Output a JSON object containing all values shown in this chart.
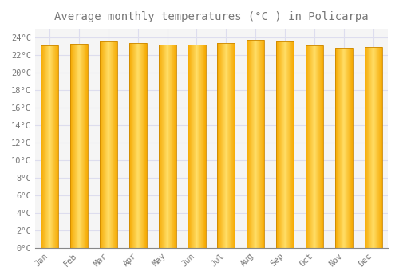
{
  "title": "Average monthly temperatures (°C ) in Policarpa",
  "months": [
    "Jan",
    "Feb",
    "Mar",
    "Apr",
    "May",
    "Jun",
    "Jul",
    "Aug",
    "Sep",
    "Oct",
    "Nov",
    "Dec"
  ],
  "temperatures": [
    23.1,
    23.3,
    23.5,
    23.4,
    23.2,
    23.2,
    23.4,
    23.7,
    23.5,
    23.1,
    22.8,
    22.9
  ],
  "bar_color_center": "#FFD966",
  "bar_color_edge": "#F5A800",
  "bar_edge_color": "#CC8800",
  "ylim": [
    0,
    25
  ],
  "yticks": [
    0,
    2,
    4,
    6,
    8,
    10,
    12,
    14,
    16,
    18,
    20,
    22,
    24
  ],
  "ytick_labels": [
    "0°C",
    "2°C",
    "4°C",
    "6°C",
    "8°C",
    "10°C",
    "12°C",
    "14°C",
    "16°C",
    "18°C",
    "20°C",
    "22°C",
    "24°C"
  ],
  "background_color": "#ffffff",
  "plot_bg_color": "#f5f5f5",
  "grid_color": "#ddddee",
  "title_fontsize": 10,
  "tick_fontsize": 7.5,
  "font_color": "#777777",
  "bar_width": 0.6
}
